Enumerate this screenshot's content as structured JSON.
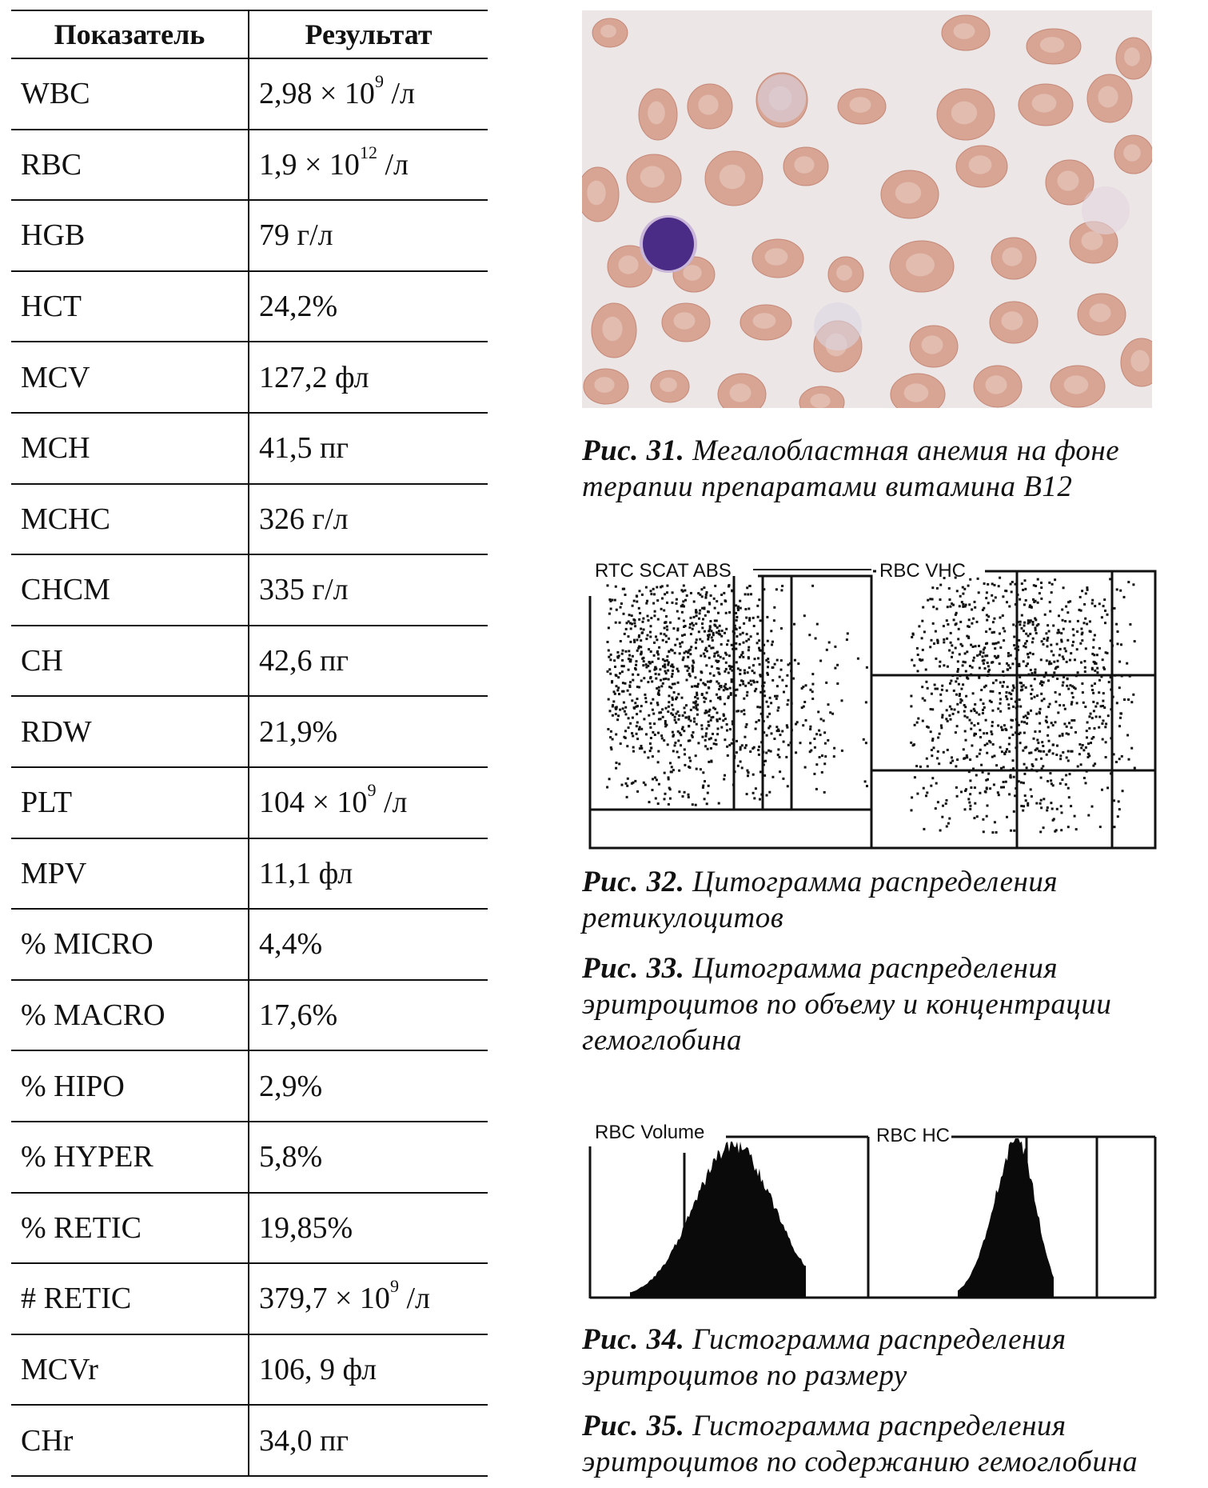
{
  "table": {
    "headers": [
      "Показатель",
      "Результат"
    ],
    "rows": [
      {
        "name": "WBC",
        "base": "2,98 × 10",
        "sup": "9",
        "unit": " /л"
      },
      {
        "name": "RBC",
        "base": "1,9 × 10",
        "sup": "12",
        "unit": " /л"
      },
      {
        "name": "HGB",
        "base": "79 г/л",
        "sup": "",
        "unit": ""
      },
      {
        "name": "HCT",
        "base": "24,2%",
        "sup": "",
        "unit": ""
      },
      {
        "name": "MCV",
        "base": "127,2 фл",
        "sup": "",
        "unit": ""
      },
      {
        "name": "MCH",
        "base": "41,5 пг",
        "sup": "",
        "unit": ""
      },
      {
        "name": "MCHC",
        "base": "326 г/л",
        "sup": "",
        "unit": ""
      },
      {
        "name": "CHCM",
        "base": "335 г/л",
        "sup": "",
        "unit": ""
      },
      {
        "name": "CH",
        "base": "42,6 пг",
        "sup": "",
        "unit": ""
      },
      {
        "name": "RDW",
        "base": "21,9%",
        "sup": "",
        "unit": ""
      },
      {
        "name": "PLT",
        "base": "104 × 10",
        "sup": "9",
        "unit": " /л"
      },
      {
        "name": "MPV",
        "base": "11,1 фл",
        "sup": "",
        "unit": ""
      },
      {
        "name": "% MICRO",
        "base": "4,4%",
        "sup": "",
        "unit": ""
      },
      {
        "name": "% MACRO",
        "base": "17,6%",
        "sup": "",
        "unit": ""
      },
      {
        "name": "% HIPO",
        "base": "2,9%",
        "sup": "",
        "unit": ""
      },
      {
        "name": "% HYPER",
        "base": "5,8%",
        "sup": "",
        "unit": ""
      },
      {
        "name": "% RETIC",
        "base": "19,85%",
        "sup": "",
        "unit": ""
      },
      {
        "name": "# RETIC",
        "base": "379,7 × 10",
        "sup": "9",
        "unit": " /л"
      },
      {
        "name": "MCVr",
        "base": "106, 9 фл",
        "sup": "",
        "unit": ""
      },
      {
        "name": "CHr",
        "base": "34,0 пг",
        "sup": "",
        "unit": ""
      }
    ]
  },
  "captions": {
    "fig31": {
      "label": "Рис. 31.",
      "text": " Мегалобластная анемия на фоне терапии препаратами витамина В12"
    },
    "fig32": {
      "label": "Рис. 32.",
      "text": " Цитограмма распределения ретикулоцитов"
    },
    "fig33": {
      "label": "Рис. 33.",
      "text": " Цитограмма распределения эритроцитов по объему и концентрации гемоглобина"
    },
    "fig34": {
      "label": "Рис. 34.",
      "text": " Гистограмма распределения эритроцитов по размеру"
    },
    "fig35": {
      "label": "Рис. 35.",
      "text": " Гистограмма распределения эритроцитов по содержанию гемоглобина"
    }
  },
  "cytograms": {
    "left_label": "RTC SCAT ABS",
    "right_label": "RBC VHC"
  },
  "histograms": {
    "left_label": "RBC Volume",
    "right_label": "RBC HC"
  },
  "colors": {
    "rbc_fill": "#d8a594",
    "rbc_edge": "#c48877",
    "lymph_nucleus": "#4a2c86",
    "background": "#ece6e6"
  }
}
